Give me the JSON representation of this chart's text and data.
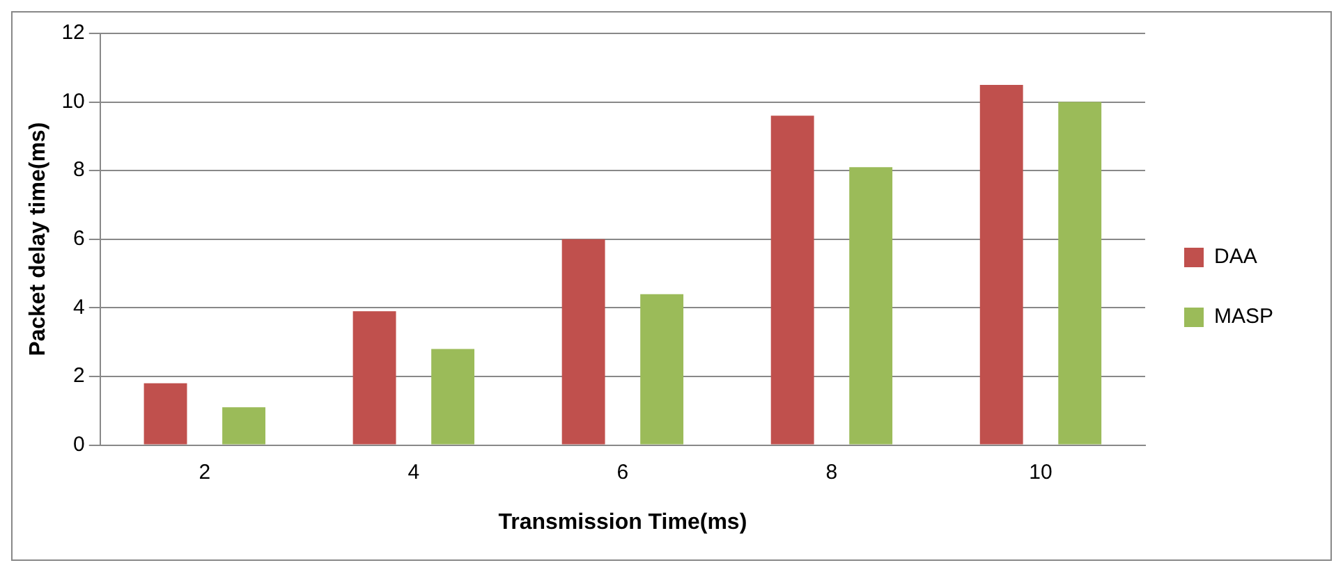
{
  "chart_data": {
    "type": "bar",
    "xlabel": "Transmission Time(ms)",
    "ylabel": "Packet delay time(ms)",
    "categories": [
      "2",
      "4",
      "6",
      "8",
      "10"
    ],
    "series": [
      {
        "name": "DAA",
        "color": "#c0504d",
        "values": [
          1.8,
          3.9,
          6.0,
          9.6,
          10.5
        ]
      },
      {
        "name": "MASP",
        "color": "#9bbb59",
        "values": [
          1.1,
          2.8,
          4.4,
          8.1,
          10.0
        ]
      }
    ],
    "ylim": [
      0,
      12
    ],
    "yticks": [
      0,
      2,
      4,
      6,
      8,
      10,
      12
    ],
    "grid": "y",
    "legend": "right"
  }
}
